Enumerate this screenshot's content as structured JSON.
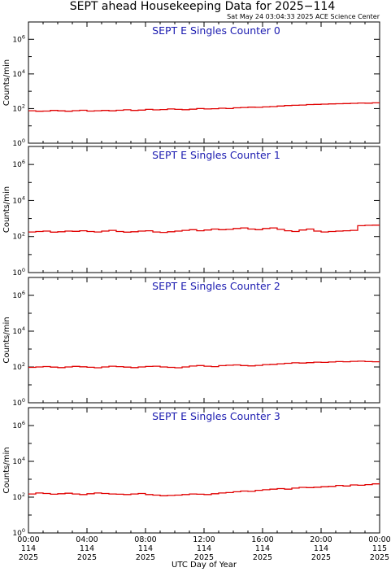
{
  "title": "SEPT ahead Housekeeping Data for 2025−114",
  "subtitle": "Sat May 24 03:04:33 2025 ACE Science Center",
  "xlabel": "UTC Day of Year",
  "colors": {
    "series": "#e00000",
    "panel_title": "#1b1bb0"
  },
  "chart_data": [
    {
      "type": "line",
      "title": "SEPT E Singles Counter 0",
      "ylabel": "Counts/min",
      "yscale": "log",
      "ylim": [
        1,
        10000000
      ],
      "yticks": [
        {
          "base": "10",
          "exp": "0",
          "v": 1
        },
        {
          "base": "10",
          "exp": "2",
          "v": 100
        },
        {
          "base": "10",
          "exp": "4",
          "v": 10000
        },
        {
          "base": "10",
          "exp": "6",
          "v": 1000000
        }
      ],
      "xlim": [
        0,
        24
      ],
      "step_hours": 0.5,
      "series": [
        {
          "values": [
            75,
            70,
            72,
            78,
            74,
            70,
            76,
            80,
            72,
            75,
            78,
            74,
            80,
            85,
            78,
            82,
            90,
            84,
            88,
            95,
            90,
            86,
            92,
            100,
            95,
            98,
            105,
            100,
            110,
            115,
            120,
            118,
            125,
            130,
            140,
            150,
            155,
            160,
            170,
            175,
            180,
            185,
            190,
            195,
            200,
            210,
            205,
            215,
            220,
            230,
            225,
            220,
            215,
            210,
            220,
            225,
            230,
            240,
            245,
            250,
            255,
            250,
            260,
            270,
            280,
            275,
            260,
            250,
            240,
            235,
            230,
            225,
            230,
            240,
            250,
            260,
            270,
            280,
            275,
            270,
            265,
            260,
            255,
            265,
            270,
            280,
            275,
            270,
            265,
            260,
            270,
            280,
            285,
            290,
            300,
            310,
            300,
            290,
            280,
            270,
            260,
            250
          ]
        }
      ]
    },
    {
      "type": "line",
      "title": "SEPT E Singles Counter 1",
      "ylabel": "Counts/min",
      "yscale": "log",
      "ylim": [
        1,
        10000000
      ],
      "yticks": [
        {
          "base": "10",
          "exp": "0",
          "v": 1
        },
        {
          "base": "10",
          "exp": "2",
          "v": 100
        },
        {
          "base": "10",
          "exp": "4",
          "v": 10000
        },
        {
          "base": "10",
          "exp": "6",
          "v": 1000000
        }
      ],
      "xlim": [
        0,
        24
      ],
      "step_hours": 0.5,
      "series": [
        {
          "values": [
            180,
            190,
            200,
            175,
            185,
            200,
            195,
            210,
            190,
            180,
            200,
            220,
            190,
            175,
            185,
            200,
            210,
            180,
            170,
            185,
            200,
            220,
            240,
            210,
            230,
            260,
            240,
            250,
            280,
            300,
            260,
            240,
            280,
            300,
            250,
            210,
            190,
            230,
            260,
            200,
            180,
            190,
            200,
            210,
            220,
            400,
            420,
            430,
            440,
            450,
            460,
            470,
            480,
            470,
            460,
            480,
            500,
            490,
            470,
            460,
            480,
            490,
            500,
            520,
            540,
            530,
            510,
            500,
            480,
            470,
            490,
            510,
            520,
            530,
            540,
            560,
            550,
            540,
            530,
            520,
            540,
            560,
            580,
            570,
            560,
            550,
            560,
            580,
            600,
            620,
            600,
            580,
            600,
            640,
            680,
            720,
            650,
            700,
            780,
            900,
            850,
            800
          ]
        }
      ]
    },
    {
      "type": "line",
      "title": "SEPT E Singles Counter 2",
      "ylabel": "Counts/min",
      "yscale": "log",
      "ylim": [
        1,
        10000000
      ],
      "yticks": [
        {
          "base": "10",
          "exp": "0",
          "v": 1
        },
        {
          "base": "10",
          "exp": "2",
          "v": 100
        },
        {
          "base": "10",
          "exp": "4",
          "v": 10000
        },
        {
          "base": "10",
          "exp": "6",
          "v": 1000000
        }
      ],
      "xlim": [
        0,
        24
      ],
      "step_hours": 0.5,
      "series": [
        {
          "values": [
            95,
            100,
            105,
            98,
            92,
            100,
            108,
            102,
            96,
            90,
            100,
            110,
            104,
            98,
            92,
            100,
            106,
            110,
            100,
            95,
            90,
            100,
            112,
            120,
            110,
            104,
            118,
            125,
            130,
            120,
            115,
            122,
            135,
            140,
            150,
            160,
            170,
            165,
            175,
            185,
            180,
            190,
            200,
            195,
            205,
            210,
            200,
            195,
            205,
            215,
            210,
            200,
            205,
            215,
            220,
            210,
            205,
            215,
            225,
            230,
            220,
            215,
            225,
            235,
            240,
            230,
            220,
            225,
            235,
            245,
            240,
            235,
            245,
            255,
            250,
            245,
            255,
            265,
            260,
            255,
            265,
            270,
            265,
            260,
            270,
            280,
            275,
            270,
            280,
            290,
            285,
            280,
            290,
            300,
            295,
            290,
            300,
            310,
            305,
            300,
            310,
            320
          ]
        }
      ]
    },
    {
      "type": "line",
      "title": "SEPT E Singles Counter 3",
      "ylabel": "Counts/min",
      "yscale": "log",
      "ylim": [
        1,
        10000000
      ],
      "yticks": [
        {
          "base": "10",
          "exp": "0",
          "v": 1
        },
        {
          "base": "10",
          "exp": "2",
          "v": 100
        },
        {
          "base": "10",
          "exp": "4",
          "v": 10000
        },
        {
          "base": "10",
          "exp": "6",
          "v": 1000000
        }
      ],
      "xlim": [
        0,
        24
      ],
      "step_hours": 0.5,
      "series": [
        {
          "values": [
            150,
            170,
            160,
            145,
            155,
            165,
            150,
            140,
            155,
            170,
            160,
            150,
            145,
            140,
            150,
            160,
            140,
            130,
            120,
            125,
            130,
            140,
            150,
            145,
            140,
            155,
            170,
            180,
            200,
            220,
            210,
            240,
            260,
            280,
            300,
            280,
            320,
            350,
            340,
            360,
            380,
            400,
            450,
            420,
            480,
            460,
            500,
            550,
            600,
            620,
            580,
            640,
            700,
            680,
            720,
            750,
            800,
            780,
            760,
            740,
            720,
            700,
            680,
            660,
            640,
            620,
            600,
            640,
            680,
            700,
            720,
            680,
            640,
            620,
            600,
            580,
            560,
            540,
            520,
            500,
            540,
            560,
            600,
            640,
            680,
            700,
            720,
            740,
            760,
            780,
            800,
            780,
            760,
            740,
            720,
            700,
            680,
            640,
            600,
            560,
            520,
            480
          ]
        }
      ]
    }
  ],
  "x_ticks": [
    {
      "time": "00:00",
      "day": "114",
      "year": "2025",
      "h": 0
    },
    {
      "time": "04:00",
      "day": "114",
      "year": "2025",
      "h": 4
    },
    {
      "time": "08:00",
      "day": "114",
      "year": "2025",
      "h": 8
    },
    {
      "time": "12:00",
      "day": "114",
      "year": "2025",
      "h": 12
    },
    {
      "time": "16:00",
      "day": "114",
      "year": "2025",
      "h": 16
    },
    {
      "time": "20:00",
      "day": "114",
      "year": "2025",
      "h": 20
    },
    {
      "time": "00:00",
      "day": "115",
      "year": "2025",
      "h": 24
    }
  ]
}
